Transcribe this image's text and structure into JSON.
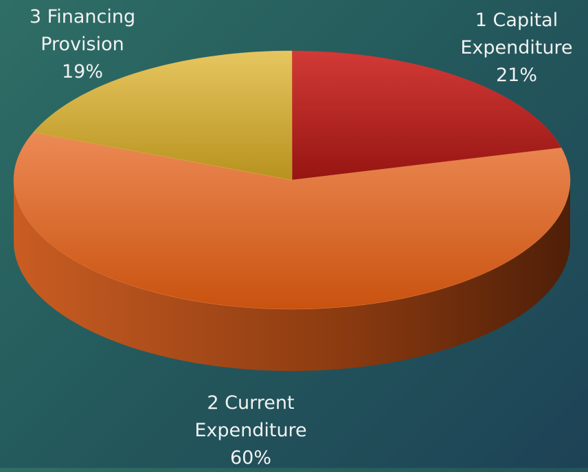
{
  "chart_data": {
    "type": "pie",
    "categories": [
      "1 Capital Expenditure",
      "2 Current Expenditure",
      "3 Financing Provision"
    ],
    "values": [
      21,
      60,
      19
    ],
    "value_labels": [
      "21%",
      "60%",
      "19%"
    ],
    "colors": [
      "#c42f2c",
      "#e5814a",
      "#dcb545"
    ],
    "start_angle": 0,
    "direction": "clockwise",
    "3d": true
  }
}
